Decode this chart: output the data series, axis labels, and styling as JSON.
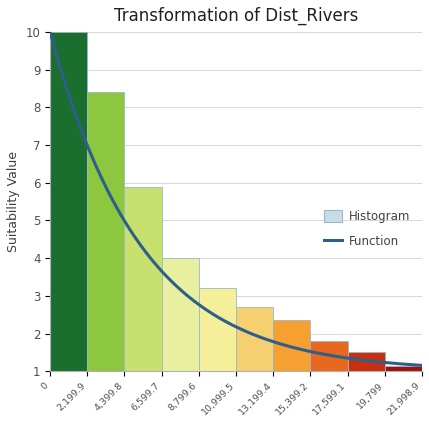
{
  "title": "Transformation of Dist_Rivers",
  "ylabel": "Suitability Value",
  "ylim": [
    1,
    10
  ],
  "xlim": [
    0,
    22000
  ],
  "bar_lefts": [
    0,
    2199.9,
    4399.8,
    6599.7,
    8799.6,
    10999.5,
    13199.4,
    15399.2,
    17599.1,
    19799
  ],
  "bar_width": 2199.9,
  "bar_heights": [
    10.0,
    8.4,
    5.9,
    4.0,
    3.2,
    2.7,
    2.35,
    1.8,
    1.5,
    1.15
  ],
  "bar_colors": [
    "#1a6e2e",
    "#8dc63f",
    "#c8e06e",
    "#e8f0a0",
    "#f5ef9a",
    "#f5d070",
    "#f5a030",
    "#e86820",
    "#c83010",
    "#a01010"
  ],
  "tick_positions": [
    0,
    2199.9,
    4399.8,
    6599.7,
    8799.6,
    10999.5,
    13199.4,
    15399.2,
    17599.1,
    19799,
    21998.9
  ],
  "tick_labels": [
    "0",
    "2,199.9",
    "4,399.8",
    "6,599.7",
    "8,799.6",
    "10,999.5",
    "13,199.4",
    "15,399.2",
    "17,599.1",
    "19,799",
    "21,998.9"
  ],
  "grid_color": "#d8d8d8",
  "background_color": "#ffffff",
  "bar_edge_color": "#9ab8c8",
  "line_color": "#2e5f8a",
  "legend_hist_color": "#c8dce8",
  "line_width": 2.2,
  "decay_k": 0.000185
}
